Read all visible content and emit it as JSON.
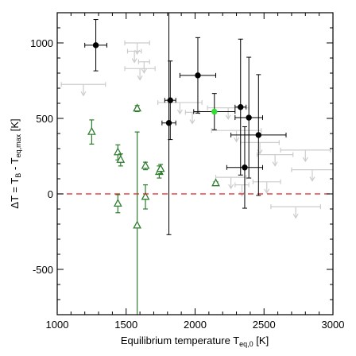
{
  "chart_data": {
    "type": "scatter",
    "title": "",
    "xlabel": "Equilibrium temperature T",
    "xlabel_subscript": "eq,0",
    "xlabel_unit": " [K]",
    "ylabel_parts": {
      "main": "ΔT = T",
      "sub1": "B",
      "mid": " - T",
      "sub2": "eq,max",
      "unit": " [K]"
    },
    "xlim": [
      1000,
      3000
    ],
    "ylim": [
      -800,
      1200
    ],
    "xticks": [
      1000,
      1500,
      2000,
      2500,
      3000
    ],
    "yticks": [
      -500,
      0,
      500,
      1000
    ],
    "grid": false,
    "colors": {
      "detections": "#000000",
      "highlight": "#33dd33",
      "triangles": "#2e7d2e",
      "upper_limits": "#cccccc",
      "zero_line": "#dd2222"
    },
    "series": [
      {
        "marker": "filled-circle",
        "color": "#000000",
        "points": [
          {
            "x": 1280,
            "y": 985,
            "xerr": 80,
            "yerr": 170
          },
          {
            "x": 1820,
            "y": 620,
            "xerr": 40,
            "yerr": 260
          },
          {
            "x": 1810,
            "y": 470,
            "xerr": 50,
            "yerr": 740
          },
          {
            "x": 2020,
            "y": 785,
            "xerr": 130,
            "yerr": 250
          },
          {
            "x": 2330,
            "y": 575,
            "xerr": 40,
            "yerr": 450
          },
          {
            "x": 2390,
            "y": 505,
            "xerr": 100,
            "yerr": 400
          },
          {
            "x": 2460,
            "y": 390,
            "xerr": 200,
            "yerr": 400
          },
          {
            "x": 2360,
            "y": 175,
            "xerr": 130,
            "yerr": 270
          }
        ]
      },
      {
        "marker": "filled-circle",
        "color": "#33dd33",
        "points": [
          {
            "x": 2140,
            "y": 545,
            "xerr": 150,
            "yerr": 120
          }
        ]
      },
      {
        "marker": "open-triangle",
        "color": "#2e7d2e",
        "points": [
          {
            "x": 1250,
            "y": 410,
            "xerr": 0,
            "yerr": 80
          },
          {
            "x": 1440,
            "y": 275,
            "xerr": 0,
            "yerr": 50
          },
          {
            "x": 1460,
            "y": 225,
            "xerr": 0,
            "yerr": 40
          },
          {
            "x": 1440,
            "y": -65,
            "xerr": 0,
            "yerr": 60
          },
          {
            "x": 1580,
            "y": 565,
            "xerr": 0,
            "yerr": 20
          },
          {
            "x": 1580,
            "y": -210,
            "xerr": 0,
            "yerr": 620
          },
          {
            "x": 1640,
            "y": -20,
            "xerr": 0,
            "yerr": 80
          },
          {
            "x": 1640,
            "y": 185,
            "xerr": 0,
            "yerr": 25
          },
          {
            "x": 1740,
            "y": 145,
            "xerr": 0,
            "yerr": 40
          },
          {
            "x": 1750,
            "y": 165,
            "xerr": 0,
            "yerr": 30
          },
          {
            "x": 2150,
            "y": 70,
            "xerr": 0,
            "yerr": 10
          }
        ]
      },
      {
        "marker": "upper-limit-arrow",
        "color": "#cccccc",
        "points": [
          {
            "x": 1190,
            "y": 725,
            "xerr": 160
          },
          {
            "x": 1580,
            "y": 1000,
            "xerr": 90
          },
          {
            "x": 1560,
            "y": 945,
            "xerr": 50
          },
          {
            "x": 1600,
            "y": 830,
            "xerr": 110
          },
          {
            "x": 1630,
            "y": 875,
            "xerr": 40
          },
          {
            "x": 1890,
            "y": 605,
            "xerr": 160
          },
          {
            "x": 1980,
            "y": 540,
            "xerr": 50
          },
          {
            "x": 2240,
            "y": 570,
            "xerr": 150
          },
          {
            "x": 2300,
            "y": 420,
            "xerr": 180
          },
          {
            "x": 2470,
            "y": 340,
            "xerr": 140
          },
          {
            "x": 2580,
            "y": 260,
            "xerr": 130
          },
          {
            "x": 2260,
            "y": 110,
            "xerr": 110
          },
          {
            "x": 2340,
            "y": 60,
            "xerr": 50
          },
          {
            "x": 2520,
            "y": 80,
            "xerr": 100
          },
          {
            "x": 2730,
            "y": -85,
            "xerr": 180
          },
          {
            "x": 2800,
            "y": 290,
            "xerr": 180
          },
          {
            "x": 2850,
            "y": 160,
            "xerr": 150
          }
        ]
      }
    ]
  }
}
